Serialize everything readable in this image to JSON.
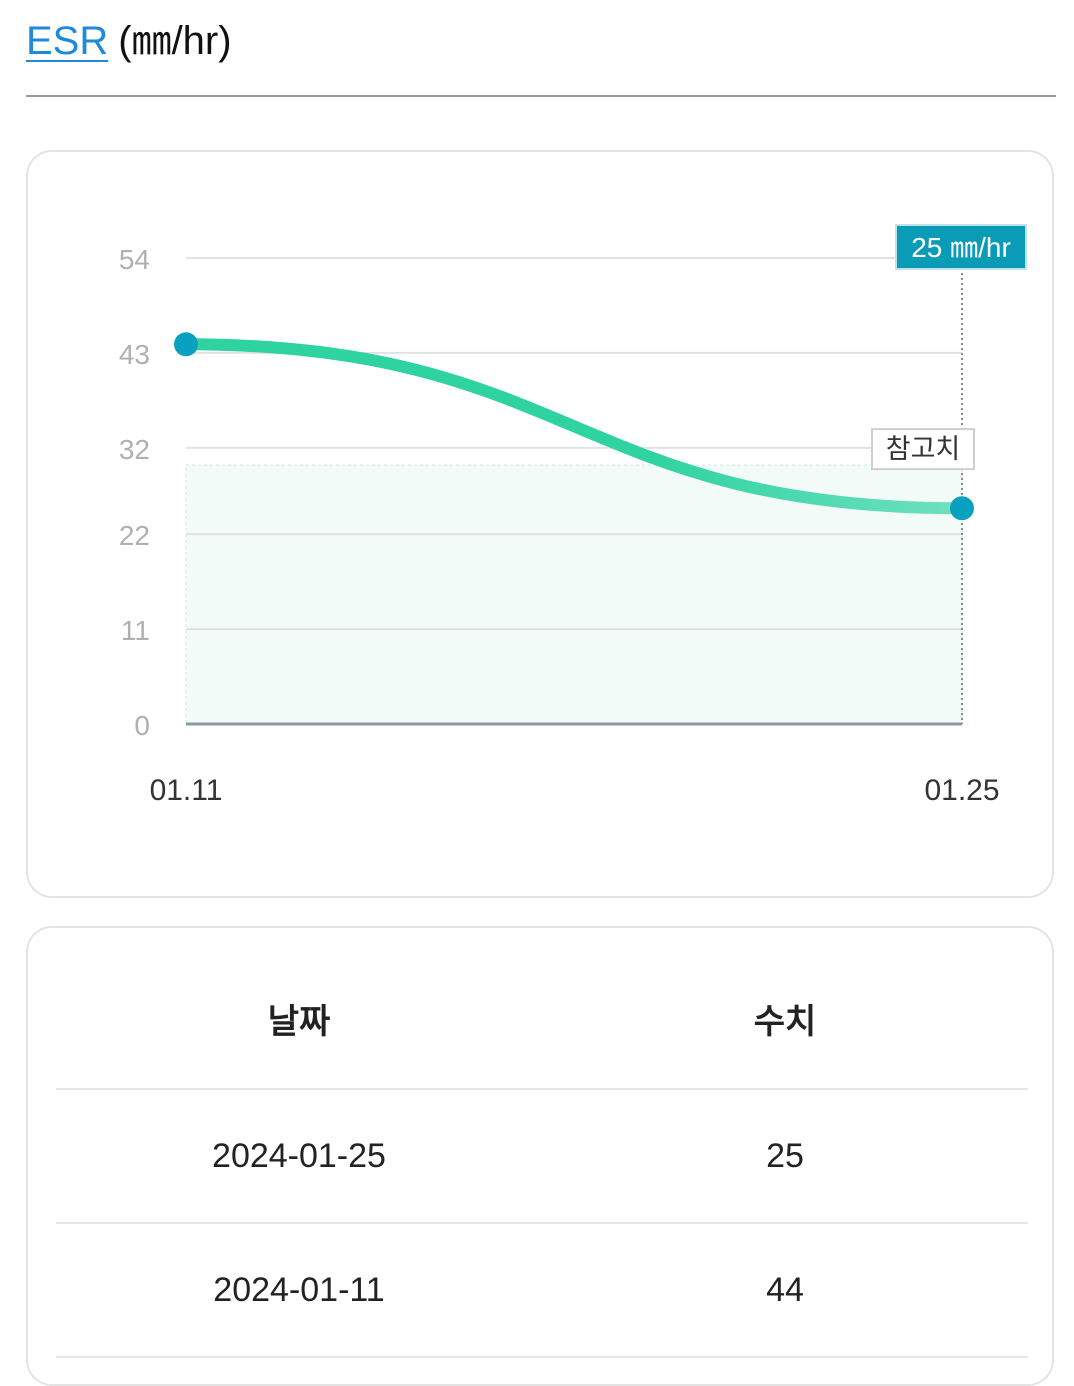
{
  "header": {
    "title": "ESR",
    "unit": "(㎜/hr)"
  },
  "chart_data": {
    "type": "line",
    "categories": [
      "01.11",
      "01.25"
    ],
    "series": [
      {
        "values": [
          44,
          25
        ]
      }
    ],
    "yticks": [
      0,
      11,
      22,
      32,
      43,
      54
    ],
    "ylim": [
      0,
      54
    ],
    "grid": true,
    "reference_band": {
      "label": "참고치",
      "min": 0,
      "max": 30
    },
    "tooltip": {
      "value": "25",
      "unit": "㎜/hr",
      "category": "01.25"
    },
    "colors": {
      "line": "#2fd3a0",
      "line_end": "#6fe0c0",
      "point": "#0aa0c0",
      "band": "#f3fbf9",
      "tooltip_bg": "#0a9bb6",
      "grid": "#e2e2e2",
      "tick_text": "#b0b0b0"
    }
  },
  "table": {
    "headers": {
      "date": "날짜",
      "value": "수치"
    },
    "rows": [
      {
        "date": "2024-01-25",
        "value": "25"
      },
      {
        "date": "2024-01-11",
        "value": "44"
      }
    ]
  }
}
